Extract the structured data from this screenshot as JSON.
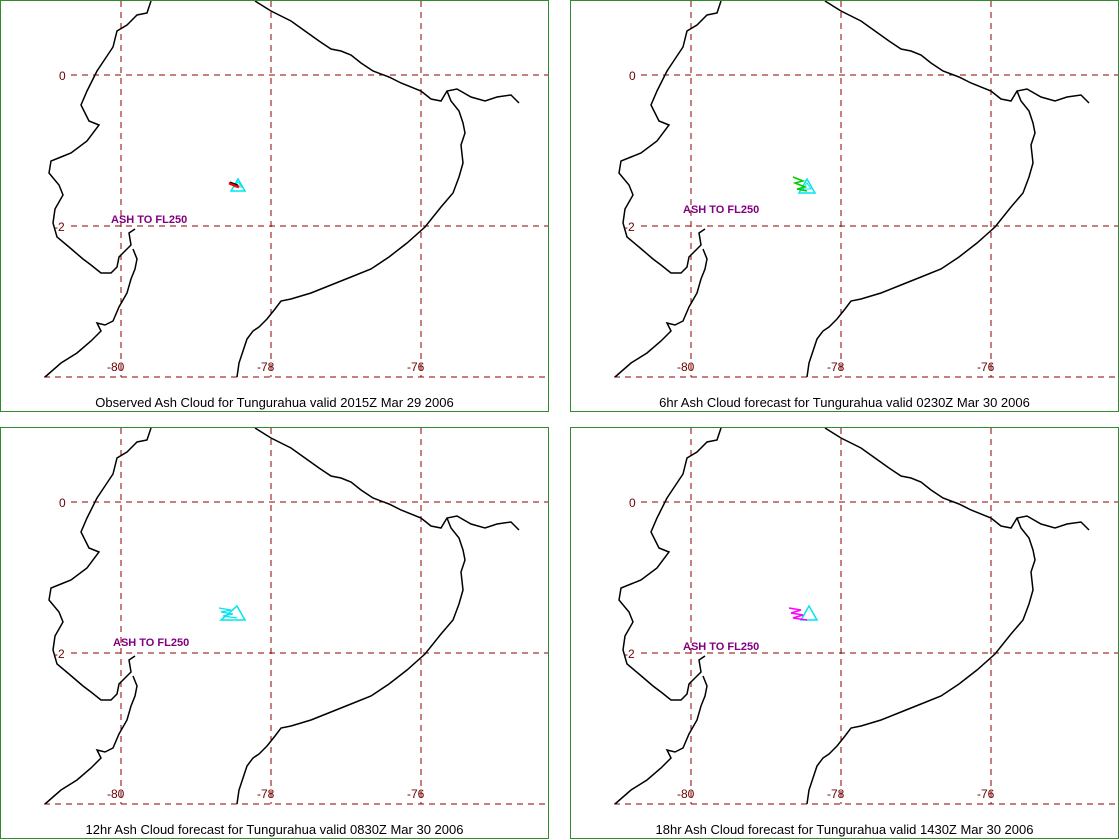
{
  "panels": [
    {
      "caption": "Observed Ash Cloud for Tungurahua valid 2015Z Mar 29 2006",
      "ash_label": "ASH TO FL250",
      "cloud_colors": [
        "#00e5ee",
        "#ff0000",
        "#000000"
      ]
    },
    {
      "caption": "6hr Ash Cloud forecast for Tungurahua valid 0230Z Mar 30 2006",
      "ash_label": "ASH TO FL250",
      "cloud_colors": [
        "#00e5ee",
        "#00cc00"
      ]
    },
    {
      "caption": "12hr Ash Cloud forecast for Tungurahua valid 0830Z Mar 30 2006",
      "ash_label": "ASH TO FL250",
      "cloud_colors": [
        "#00e5ee"
      ]
    },
    {
      "caption": "18hr Ash Cloud forecast for Tungurahua valid 1430Z Mar 30 2006",
      "ash_label": "ASH TO FL250",
      "cloud_colors": [
        "#00e5ee",
        "#ff00ff"
      ]
    }
  ],
  "lat_labels": [
    "0",
    "-2"
  ],
  "lon_labels": [
    "-80",
    "-78",
    "-76"
  ],
  "colors": {
    "frame": "#2e8b2e",
    "grid": "#8b0000",
    "ash_label": "#800080",
    "coast": "#000000"
  }
}
